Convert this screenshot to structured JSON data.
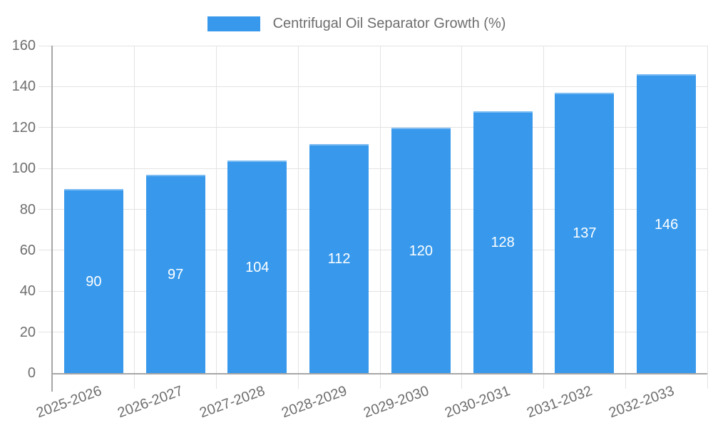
{
  "legend": {
    "label": "Centrifugal Oil Separator Growth (%)"
  },
  "chart_data": {
    "type": "bar",
    "title": "Centrifugal Oil Separator Growth (%)",
    "categories": [
      "2025-2026",
      "2026-2027",
      "2027-2028",
      "2028-2029",
      "2029-2030",
      "2030-2031",
      "2031-2032",
      "2032-2033"
    ],
    "series": [
      {
        "name": "Centrifugal Oil Separator Growth (%)",
        "values": [
          90,
          97,
          104,
          112,
          120,
          128,
          137,
          146
        ]
      }
    ],
    "xlabel": "",
    "ylabel": "",
    "ylim": [
      0,
      160
    ],
    "yticks": [
      0,
      20,
      40,
      60,
      80,
      100,
      120,
      140,
      160
    ],
    "grid": true,
    "legend_position": "top",
    "value_labels_position": "inside-center"
  },
  "colors": {
    "bar": "#3899EC",
    "axis": "#a6a6a6",
    "gridline": "#e3e3e3",
    "text": "#6e6e6e",
    "value_label": "#ffffff",
    "background": "#ffffff"
  }
}
